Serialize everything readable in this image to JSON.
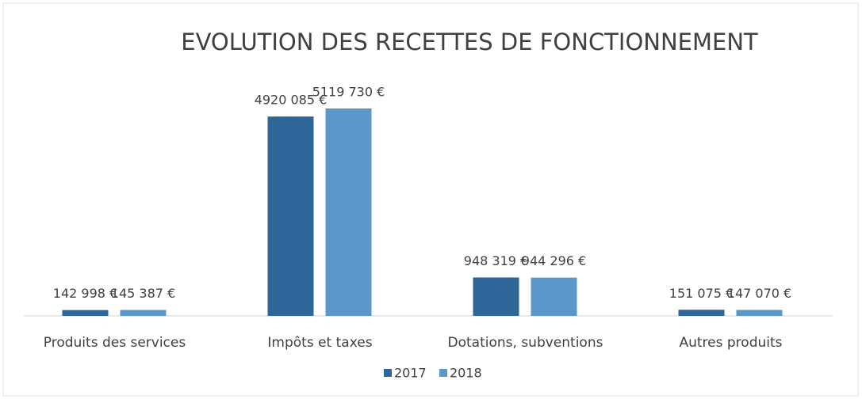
{
  "chart_data": {
    "type": "bar",
    "title": "EVOLUTION DES RECETTES DE FONCTIONNEMENT",
    "categories": [
      "Produits des services",
      "Impôts et taxes",
      "Dotations, subventions",
      "Autres produits"
    ],
    "series": [
      {
        "name": "2017",
        "color": "#2f6699",
        "values": [
          142998,
          4920085,
          948319,
          151075
        ],
        "value_labels": [
          "142 998 €",
          "4920 085 €",
          "948 319 €",
          "151 075 €"
        ]
      },
      {
        "name": "2018",
        "color": "#5b97c9",
        "values": [
          145387,
          5119730,
          944296,
          147070
        ],
        "value_labels": [
          "145 387 €",
          "5119 730 €",
          "944 296 €",
          "147 070 €"
        ]
      }
    ],
    "legend": "bottom"
  }
}
